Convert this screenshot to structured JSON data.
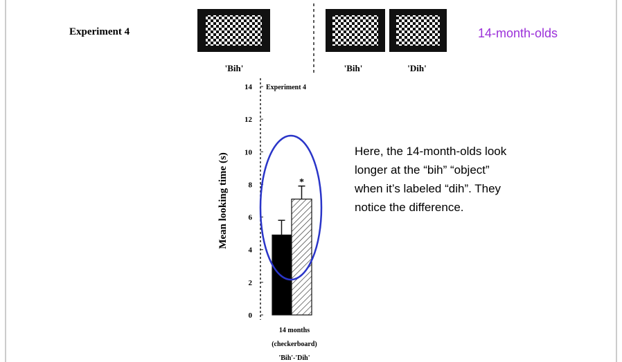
{
  "header": {
    "experiment": "Experiment 4",
    "labels": [
      "'Bih'",
      "'Bih'",
      "'Dih'"
    ],
    "age": "14-month-olds"
  },
  "note": [
    "Here, the 14-month-olds look",
    "longer at the “bih” “object”",
    "when it’s labeled “dih”.  They",
    "notice the difference."
  ],
  "chart_data": {
    "type": "bar",
    "title": "Experiment 4",
    "ylabel": "Mean looking time (s)",
    "xlabel": [
      "14  months",
      "(checkerboard)",
      "'Bih'-'Dih'"
    ],
    "categories": [
      null,
      null
    ],
    "values": [
      4.9,
      7.1
    ],
    "errors": [
      0.9,
      0.8
    ],
    "colors": [
      "#000000",
      "hatched"
    ],
    "annotations": [
      "*"
    ],
    "ylim": [
      0,
      14
    ],
    "yticks": [
      0,
      2,
      4,
      6,
      8,
      10,
      12,
      14
    ]
  }
}
